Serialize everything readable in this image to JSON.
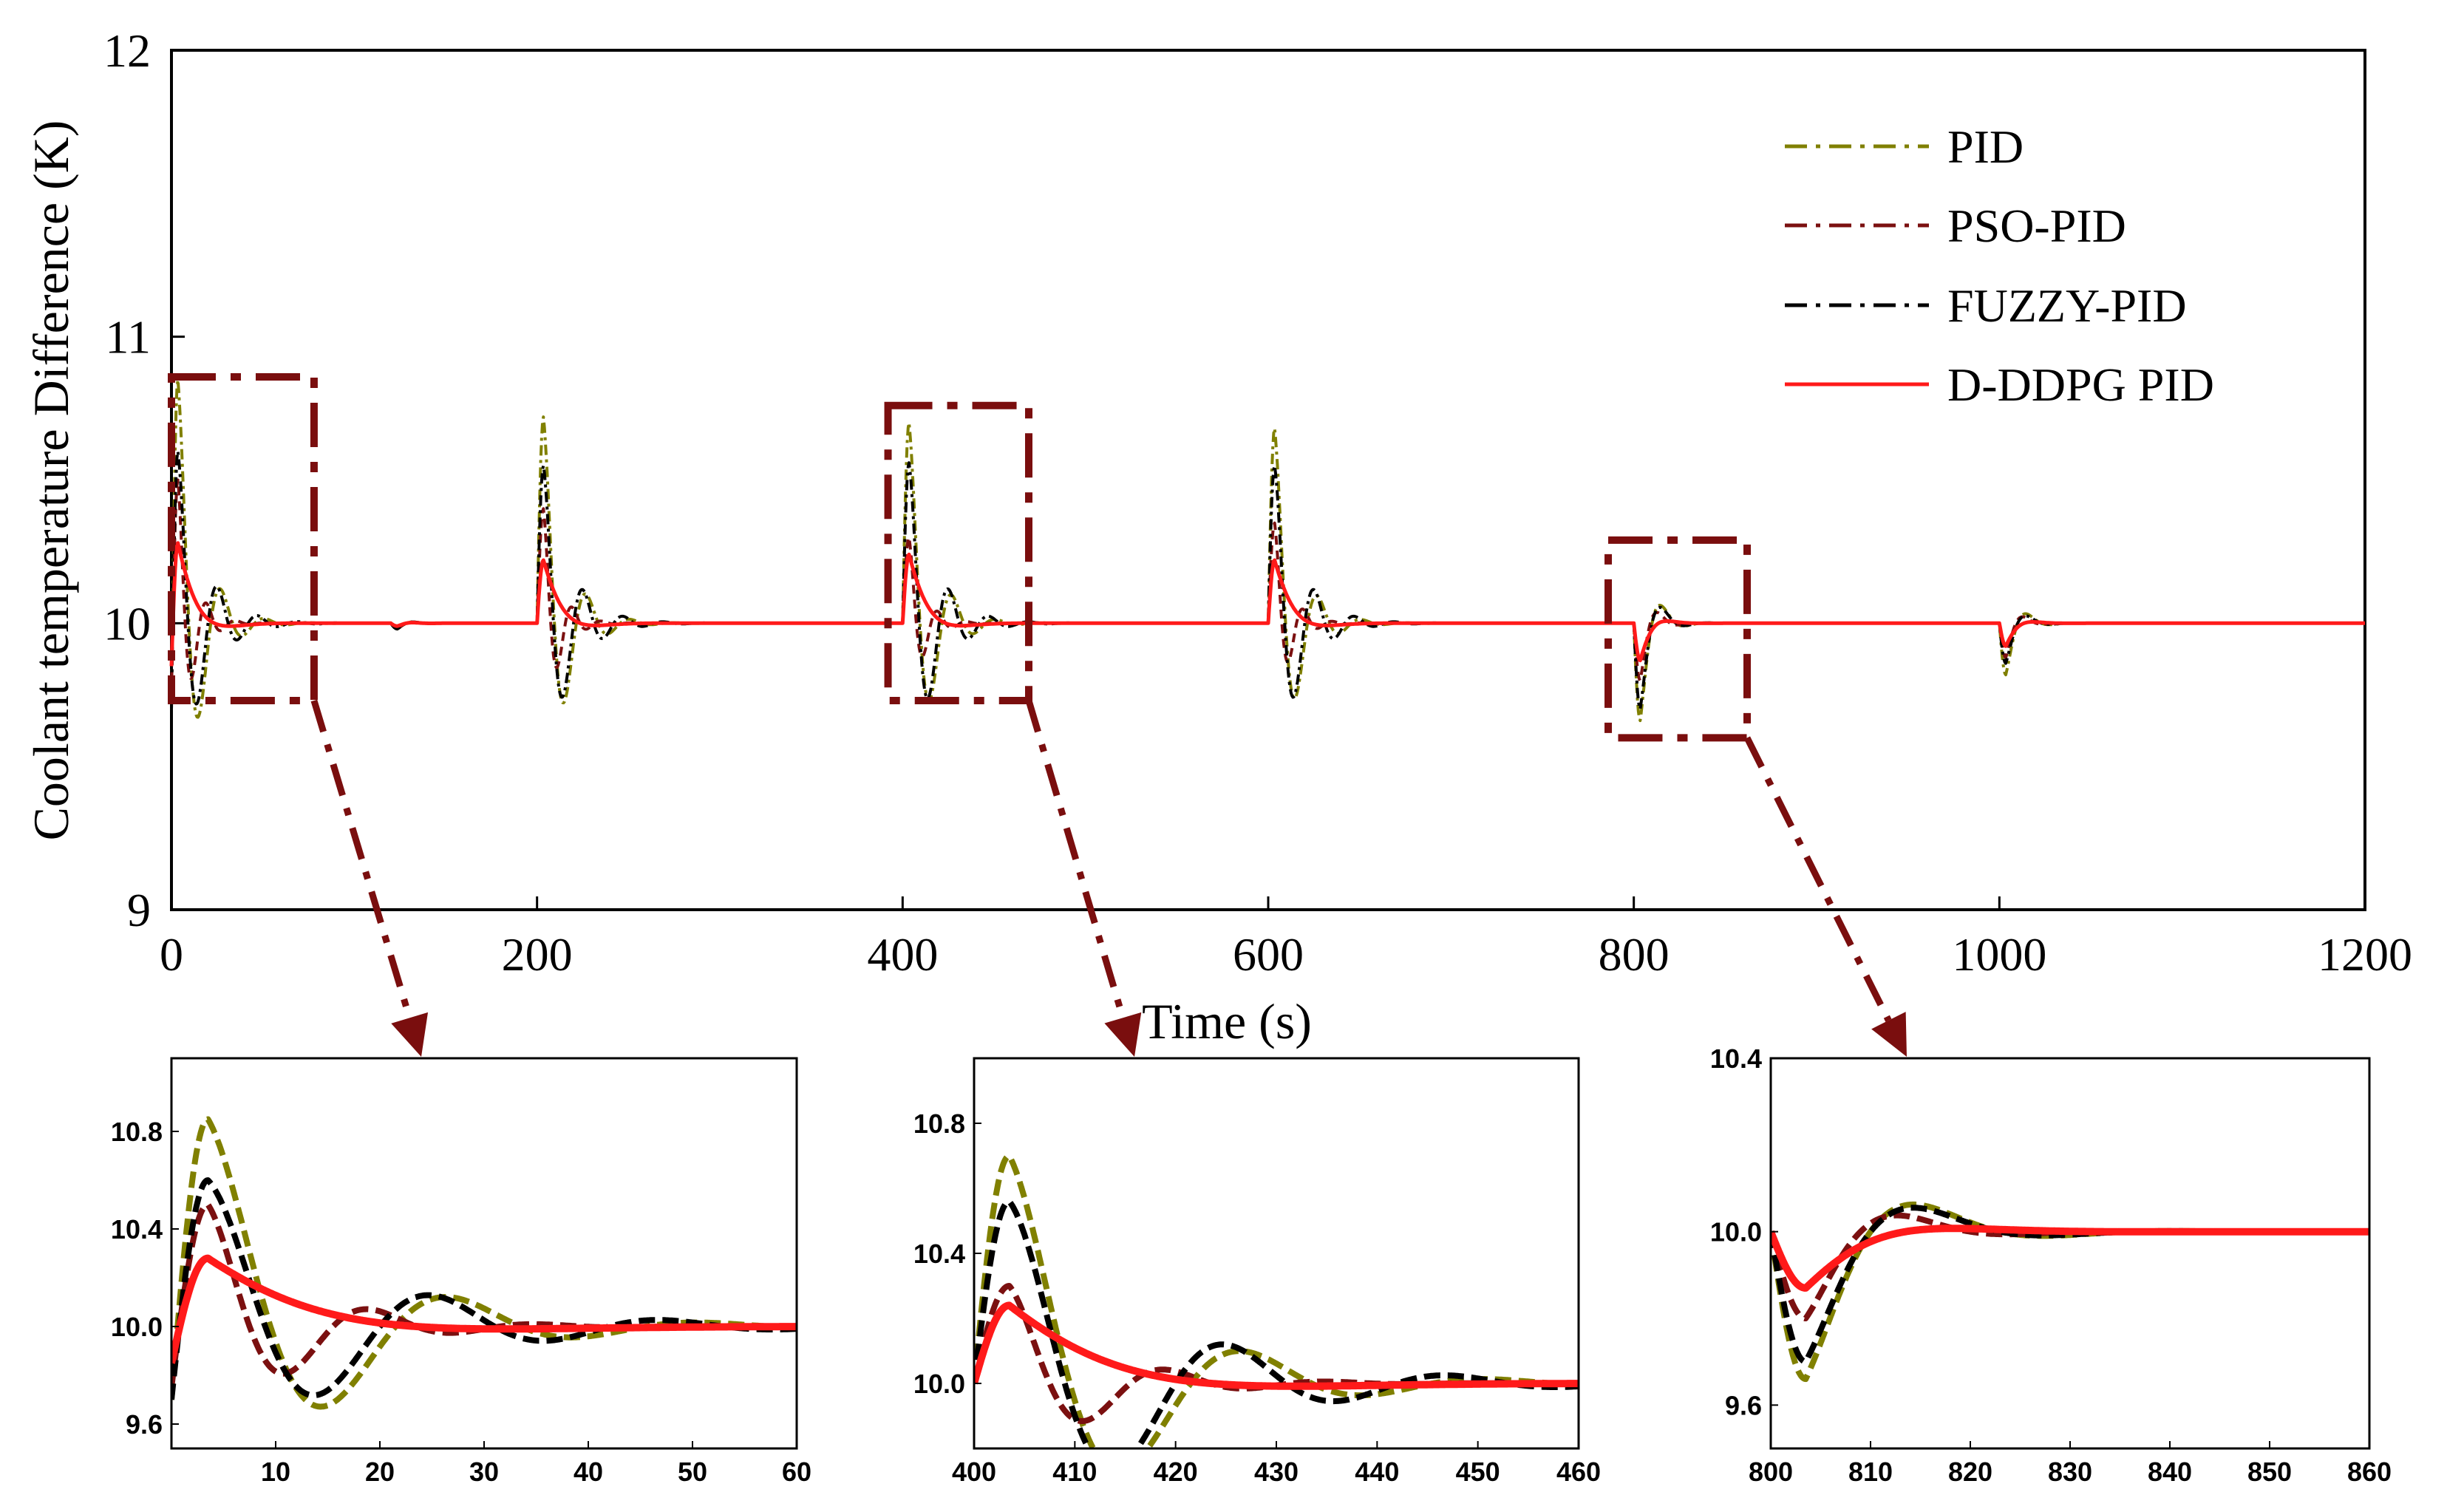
{
  "colors": {
    "pid": "#808000",
    "pso_pid": "#7b1010",
    "fuzzy_pid": "#000000",
    "ddpg_pid": "#ff1a1a",
    "zoom_box": "#7a0e0e"
  },
  "chart_data": [
    {
      "id": "main",
      "type": "line",
      "title": "",
      "xlabel": "Time (s)",
      "ylabel": "Coolant temperature Difference (K)",
      "xlim": [
        0,
        1200
      ],
      "ylim": [
        9,
        12
      ],
      "xticks": [
        0,
        200,
        400,
        600,
        800,
        1000,
        1200
      ],
      "yticks": [
        9,
        10,
        11,
        12
      ],
      "x_tick_labels": [
        "0",
        "200",
        "400",
        "600",
        "800",
        "1000",
        "1200"
      ],
      "y_tick_labels": [
        "9",
        "10",
        "11",
        "12"
      ],
      "legend": {
        "placement": "top-right",
        "entries": [
          "PID",
          "PSO-PID",
          "FUZZY-PID",
          "D-DDPG PID"
        ]
      },
      "setpoint": 10.0,
      "series": [
        {
          "name": "PID",
          "style": "dash-dot",
          "events": [
            {
              "t": 0,
              "start": 9.7,
              "peak": 10.85,
              "decay": 12,
              "period": 24
            },
            {
              "t": 120,
              "start": 10.0,
              "peak": 9.98,
              "decay": 6,
              "period": 20
            },
            {
              "t": 200,
              "start": 10.0,
              "peak": 10.72,
              "decay": 12,
              "period": 24
            },
            {
              "t": 400,
              "start": 10.0,
              "peak": 10.7,
              "decay": 12,
              "period": 24
            },
            {
              "t": 600,
              "start": 10.0,
              "peak": 10.68,
              "decay": 12,
              "period": 24
            },
            {
              "t": 800,
              "start": 10.0,
              "peak": 9.66,
              "decay": 7,
              "period": 26
            },
            {
              "t": 1000,
              "start": 10.0,
              "peak": 9.82,
              "decay": 7,
              "period": 26
            }
          ]
        },
        {
          "name": "PSO-PID",
          "style": "dashed",
          "events": [
            {
              "t": 0,
              "start": 9.75,
              "peak": 10.5,
              "decay": 8,
              "period": 16
            },
            {
              "t": 120,
              "start": 10.0,
              "peak": 9.98,
              "decay": 6,
              "period": 20
            },
            {
              "t": 200,
              "start": 10.0,
              "peak": 10.4,
              "decay": 8,
              "period": 16
            },
            {
              "t": 400,
              "start": 10.0,
              "peak": 10.3,
              "decay": 8,
              "period": 16
            },
            {
              "t": 600,
              "start": 10.0,
              "peak": 10.35,
              "decay": 8,
              "period": 16
            },
            {
              "t": 800,
              "start": 10.0,
              "peak": 9.8,
              "decay": 6,
              "period": 22
            },
            {
              "t": 1000,
              "start": 10.0,
              "peak": 9.88,
              "decay": 6,
              "period": 22
            }
          ]
        },
        {
          "name": "FUZZY-PID",
          "style": "dash-dot",
          "events": [
            {
              "t": 0,
              "start": 9.7,
              "peak": 10.6,
              "decay": 14,
              "period": 22
            },
            {
              "t": 120,
              "start": 10.0,
              "peak": 9.98,
              "decay": 6,
              "period": 20
            },
            {
              "t": 200,
              "start": 10.0,
              "peak": 10.55,
              "decay": 14,
              "period": 22
            },
            {
              "t": 400,
              "start": 10.0,
              "peak": 10.56,
              "decay": 14,
              "period": 22
            },
            {
              "t": 600,
              "start": 10.0,
              "peak": 10.55,
              "decay": 14,
              "period": 22
            },
            {
              "t": 800,
              "start": 10.0,
              "peak": 9.7,
              "decay": 7,
              "period": 26
            },
            {
              "t": 1000,
              "start": 10.0,
              "peak": 9.86,
              "decay": 7,
              "period": 26
            }
          ]
        },
        {
          "name": "D-DDPG PID",
          "style": "solid",
          "events": [
            {
              "t": 0,
              "start": 9.85,
              "peak": 10.28,
              "decay": 10,
              "period": 80
            },
            {
              "t": 120,
              "start": 10.0,
              "peak": 9.99,
              "decay": 6,
              "period": 20
            },
            {
              "t": 200,
              "start": 10.0,
              "peak": 10.22,
              "decay": 10,
              "period": 80
            },
            {
              "t": 400,
              "start": 10.0,
              "peak": 10.24,
              "decay": 10,
              "period": 80
            },
            {
              "t": 600,
              "start": 10.0,
              "peak": 10.22,
              "decay": 10,
              "period": 80
            },
            {
              "t": 800,
              "start": 10.0,
              "peak": 9.87,
              "decay": 6,
              "period": 40
            },
            {
              "t": 1000,
              "start": 10.0,
              "peak": 9.92,
              "decay": 6,
              "period": 40
            }
          ]
        }
      ],
      "zoom_boxes": [
        {
          "x": [
            0,
            78
          ],
          "y": [
            9.73,
            10.86
          ]
        },
        {
          "x": [
            392,
            469
          ],
          "y": [
            9.73,
            10.76
          ]
        },
        {
          "x": [
            786,
            862
          ],
          "y": [
            9.6,
            10.29
          ]
        }
      ]
    },
    {
      "id": "inset-1",
      "type": "line",
      "xlim": [
        0,
        60
      ],
      "ylim": [
        9.5,
        11.1
      ],
      "xticks": [
        10,
        20,
        30,
        40,
        50,
        60
      ],
      "yticks": [
        9.6,
        10.0,
        10.4,
        10.8
      ],
      "x_tick_labels": [
        "10",
        "20",
        "30",
        "40",
        "50",
        "60"
      ],
      "y_tick_labels": [
        "9.6",
        "10.0",
        "10.4",
        "10.8"
      ],
      "event_t": 0
    },
    {
      "id": "inset-2",
      "type": "line",
      "xlim": [
        400,
        460
      ],
      "ylim": [
        9.8,
        11.0
      ],
      "xticks": [
        400,
        410,
        420,
        430,
        440,
        450,
        460
      ],
      "yticks": [
        10.0,
        10.4,
        10.8
      ],
      "x_tick_labels": [
        "400",
        "410",
        "420",
        "430",
        "440",
        "450",
        "460"
      ],
      "y_tick_labels": [
        "10.0",
        "10.4",
        "10.8"
      ],
      "event_t": 400
    },
    {
      "id": "inset-3",
      "type": "line",
      "xlim": [
        800,
        860
      ],
      "ylim": [
        9.5,
        10.4
      ],
      "xticks": [
        800,
        810,
        820,
        830,
        840,
        850,
        860
      ],
      "yticks": [
        9.6,
        10.0,
        10.4
      ],
      "x_tick_labels": [
        "800",
        "810",
        "820",
        "830",
        "840",
        "850",
        "860"
      ],
      "y_tick_labels": [
        "9.6",
        "10.0",
        "10.4"
      ],
      "event_t": 800
    }
  ]
}
